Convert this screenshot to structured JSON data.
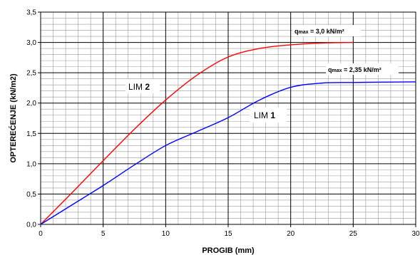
{
  "chart_data": {
    "type": "line",
    "xlabel": "PROGIB (mm)",
    "ylabel": "OPTEREĆENJE (kN/m2)",
    "xlim": [
      0,
      30
    ],
    "ylim": [
      0,
      3.5
    ],
    "x_ticks": [
      "0",
      "5",
      "10",
      "15",
      "20",
      "25",
      "30"
    ],
    "y_ticks": [
      "0,0",
      "0,5",
      "1,0",
      "1,5",
      "2,0",
      "2,5",
      "3,0",
      "3,5"
    ],
    "grid": true,
    "series": [
      {
        "name_prefix": "LIM ",
        "name_number": "2",
        "color": "#ff0000",
        "x": [
          0,
          2.5,
          5,
          7.5,
          10,
          12.5,
          15,
          17.5,
          20,
          22.5,
          25
        ],
        "y": [
          0,
          0.52,
          1.05,
          1.57,
          2.05,
          2.46,
          2.76,
          2.9,
          2.96,
          2.99,
          3.0
        ]
      },
      {
        "name_prefix": "LIM ",
        "name_number": "1",
        "color": "#0000ff",
        "x": [
          0,
          2.5,
          5,
          7.5,
          10,
          12.5,
          15,
          17.5,
          20,
          22.5,
          25,
          30
        ],
        "y": [
          0,
          0.32,
          0.64,
          0.98,
          1.3,
          1.53,
          1.76,
          2.05,
          2.26,
          2.33,
          2.34,
          2.35
        ]
      }
    ],
    "annotations": [
      {
        "q": "q",
        "sub": "max",
        "text": " = 3,0 kN/m²"
      },
      {
        "q": "q",
        "sub": "max",
        "text": " = 2,35 kN/m²"
      }
    ]
  }
}
